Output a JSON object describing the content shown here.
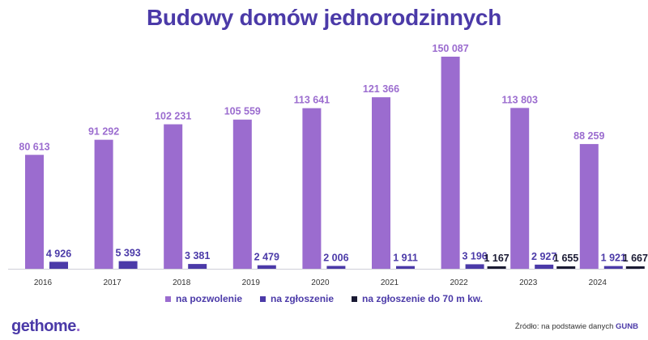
{
  "header": {
    "title": "Budowy domów jednorodzinnych"
  },
  "chart_data": {
    "type": "bar",
    "title": "Budowy domów jednorodzinnych",
    "categories": [
      "2016",
      "2017",
      "2018",
      "2019",
      "2020",
      "2021",
      "2022",
      "2023",
      "2024"
    ],
    "series": [
      {
        "name": "na pozwolenie",
        "color": "#9b6ccf",
        "values": [
          80613,
          91292,
          102231,
          105559,
          113641,
          121366,
          150087,
          113803,
          88259
        ],
        "labels": [
          "80 613",
          "91 292",
          "102 231",
          "105 559",
          "113 641",
          "121 366",
          "150 087",
          "113 803",
          "88 259"
        ]
      },
      {
        "name": "na zgłoszenie",
        "color": "#4b3aa8",
        "values": [
          4926,
          5393,
          3381,
          2479,
          2006,
          1911,
          3196,
          2927,
          1921
        ],
        "labels": [
          "4 926",
          "5 393",
          "3 381",
          "2 479",
          "2 006",
          "1 911",
          "3 196",
          "2 927",
          "1 921"
        ]
      },
      {
        "name": "na zgłoszenie do 70 m kw.",
        "color": "#1a1a33",
        "values": [
          null,
          null,
          null,
          null,
          null,
          null,
          1167,
          1655,
          1667
        ],
        "labels": [
          null,
          null,
          null,
          null,
          null,
          null,
          "1 167",
          "1 655",
          "1 667"
        ]
      }
    ],
    "xlabel": "",
    "ylabel": "",
    "grid": false,
    "legend": "bottom"
  },
  "legend": {
    "item1": "na pozwolenie",
    "item2": "na zgłoszenie",
    "item3": "na zgłoszenie do 70 m kw."
  },
  "footer": {
    "logo_main": "gethome",
    "logo_dot": ".",
    "source_prefix": "Źródło: na podstawie danych",
    "source_bold": "GUNB"
  }
}
